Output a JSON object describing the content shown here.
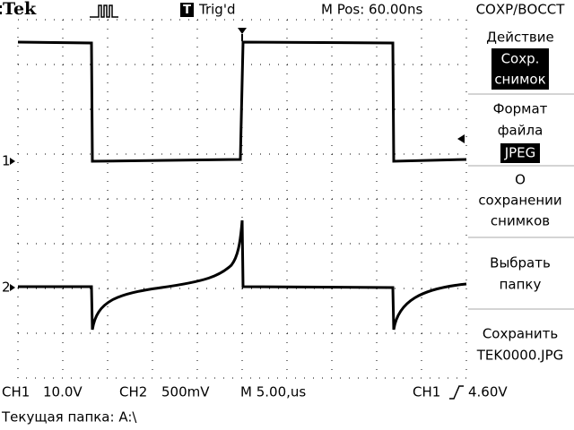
{
  "header": {
    "brand": "Tek",
    "trigger_icon": "T",
    "trigger_state": "Trig'd",
    "position": "M Pos: 60.00ns",
    "menu_title": "СОХР/ВОССТ"
  },
  "markers": {
    "ch1": "1",
    "ch2": "2"
  },
  "menu": {
    "action": {
      "label": "Действие",
      "value": [
        "Сохр.",
        "снимок"
      ]
    },
    "format": {
      "label": [
        "Формат",
        "файла"
      ],
      "value": "JPEG"
    },
    "about": [
      "О",
      "сохранении",
      "снимков"
    ],
    "folder": [
      "Выбрать",
      "папку"
    ],
    "save": [
      "Сохранить",
      "TEK0000.JPG"
    ]
  },
  "status": {
    "ch1": "CH1",
    "ch1_scale": "10.0V",
    "ch2": "CH2",
    "ch2_scale": "500mV",
    "time": "M 5.00,us",
    "trig_source": "CH1",
    "trig_level": "4.60V",
    "folder": "Текущая папка: A:\\"
  }
}
